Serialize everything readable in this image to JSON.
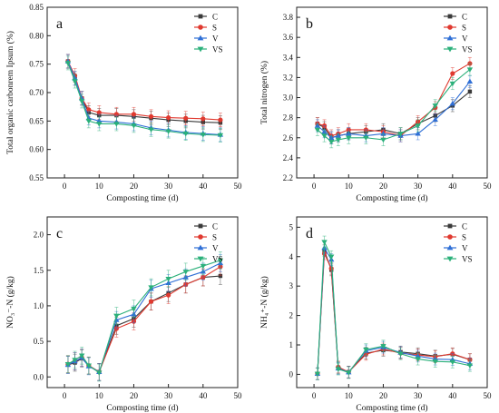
{
  "colors": {
    "C": "#3a3a3a",
    "S": "#e0392f",
    "V": "#2f6fd6",
    "VS": "#2bb07a"
  },
  "chart_data": [
    {
      "type": "line",
      "panel_label": "a",
      "xlabel": "Composting time (d)",
      "ylabel": "Total organic carbonrem Ipsum (%)",
      "xlim": [
        -5,
        50
      ],
      "ylim": [
        0.55,
        0.85
      ],
      "xticks": [
        0,
        10,
        20,
        30,
        40,
        50
      ],
      "yticks": [
        0.55,
        0.6,
        0.65,
        0.7,
        0.75,
        0.8,
        0.85
      ],
      "ytick_labels": [
        "0.55",
        "0.60",
        "0.65",
        "0.70",
        "0.75",
        "0.80",
        "0.85"
      ],
      "x": [
        1,
        3,
        5,
        7,
        10,
        15,
        20,
        25,
        30,
        35,
        40,
        45
      ],
      "legend": "top-right",
      "error_bar": 0.012,
      "series": [
        {
          "name": "C",
          "values": [
            0.755,
            0.725,
            0.69,
            0.665,
            0.66,
            0.66,
            0.658,
            0.655,
            0.652,
            0.65,
            0.648,
            0.647
          ]
        },
        {
          "name": "S",
          "values": [
            0.755,
            0.73,
            0.69,
            0.67,
            0.665,
            0.662,
            0.662,
            0.658,
            0.656,
            0.655,
            0.654,
            0.652
          ]
        },
        {
          "name": "V",
          "values": [
            0.755,
            0.725,
            0.69,
            0.655,
            0.65,
            0.648,
            0.645,
            0.638,
            0.634,
            0.63,
            0.628,
            0.626
          ]
        },
        {
          "name": "VS",
          "values": [
            0.752,
            0.72,
            0.685,
            0.65,
            0.645,
            0.645,
            0.642,
            0.635,
            0.632,
            0.628,
            0.626,
            0.625
          ]
        }
      ]
    },
    {
      "type": "line",
      "panel_label": "b",
      "xlabel": "Composting time (d)",
      "ylabel": "Total nitrogen (%)",
      "xlim": [
        -5,
        50
      ],
      "ylim": [
        2.2,
        3.9
      ],
      "xticks": [
        0,
        10,
        20,
        30,
        40,
        50
      ],
      "yticks": [
        2.2,
        2.4,
        2.6,
        2.8,
        3.0,
        3.2,
        3.4,
        3.6,
        3.8
      ],
      "ytick_labels": [
        "2.2",
        "2.4",
        "2.6",
        "2.8",
        "3.0",
        "3.2",
        "3.4",
        "3.6",
        "3.8"
      ],
      "x": [
        1,
        3,
        5,
        7,
        10,
        15,
        20,
        25,
        30,
        35,
        40,
        45
      ],
      "legend": "top-right",
      "error_bar": 0.06,
      "series": [
        {
          "name": "C",
          "values": [
            2.74,
            2.7,
            2.6,
            2.62,
            2.64,
            2.66,
            2.68,
            2.64,
            2.74,
            2.82,
            2.92,
            3.06
          ]
        },
        {
          "name": "S",
          "values": [
            2.74,
            2.72,
            2.62,
            2.64,
            2.68,
            2.68,
            2.66,
            2.62,
            2.76,
            2.9,
            3.24,
            3.34
          ]
        },
        {
          "name": "V",
          "values": [
            2.72,
            2.66,
            2.6,
            2.62,
            2.64,
            2.62,
            2.64,
            2.62,
            2.64,
            2.78,
            2.94,
            3.16
          ]
        },
        {
          "name": "VS",
          "values": [
            2.68,
            2.62,
            2.56,
            2.58,
            2.6,
            2.6,
            2.58,
            2.64,
            2.72,
            2.92,
            3.14,
            3.28
          ]
        }
      ]
    },
    {
      "type": "line",
      "panel_label": "c",
      "xlabel": "Composting time (d)",
      "ylabel": "NO₃⁻-N (g/kg)",
      "xlim": [
        -5,
        50
      ],
      "ylim": [
        -0.15,
        2.25
      ],
      "xticks": [
        0,
        10,
        20,
        30,
        40,
        50
      ],
      "yticks": [
        0,
        0.5,
        1.0,
        1.5,
        2.0
      ],
      "ytick_labels": [
        "0.0",
        "0.5",
        "1.0",
        "1.5",
        "2.0"
      ],
      "x": [
        1,
        3,
        5,
        7,
        10,
        15,
        20,
        25,
        30,
        35,
        40,
        45
      ],
      "legend": "top-right",
      "error_bar": 0.12,
      "series": [
        {
          "name": "C",
          "values": [
            0.17,
            0.2,
            0.26,
            0.16,
            0.07,
            0.72,
            0.82,
            1.06,
            1.18,
            1.3,
            1.4,
            1.42
          ]
        },
        {
          "name": "S",
          "values": [
            0.18,
            0.22,
            0.27,
            0.16,
            0.07,
            0.68,
            0.78,
            1.06,
            1.15,
            1.3,
            1.4,
            1.55
          ]
        },
        {
          "name": "V",
          "values": [
            0.17,
            0.22,
            0.27,
            0.15,
            0.07,
            0.8,
            0.88,
            1.24,
            1.32,
            1.4,
            1.48,
            1.6
          ]
        },
        {
          "name": "VS",
          "values": [
            0.18,
            0.24,
            0.3,
            0.16,
            0.06,
            0.86,
            0.96,
            1.26,
            1.38,
            1.48,
            1.56,
            1.64
          ]
        }
      ]
    },
    {
      "type": "line",
      "panel_label": "d",
      "xlabel": "Composting time (d)",
      "ylabel": "NH₄⁺-N (g/kg)",
      "xlim": [
        -5,
        50
      ],
      "ylim": [
        -0.45,
        5.35
      ],
      "xticks": [
        0,
        10,
        20,
        30,
        40,
        50
      ],
      "yticks": [
        0,
        1,
        2,
        3,
        4,
        5
      ],
      "ytick_labels": [
        "0",
        "1",
        "2",
        "3",
        "4",
        "5"
      ],
      "x": [
        1,
        3,
        5,
        7,
        10,
        15,
        20,
        25,
        30,
        35,
        40,
        45
      ],
      "legend": "top-right",
      "error_bar": 0.2,
      "series": [
        {
          "name": "C",
          "values": [
            0.02,
            4.2,
            3.55,
            0.22,
            0.08,
            0.72,
            0.82,
            0.76,
            0.7,
            0.62,
            0.68,
            0.5
          ]
        },
        {
          "name": "S",
          "values": [
            0.02,
            4.1,
            3.6,
            0.25,
            0.08,
            0.68,
            0.86,
            0.72,
            0.66,
            0.6,
            0.7,
            0.5
          ]
        },
        {
          "name": "V",
          "values": [
            0.02,
            4.3,
            3.9,
            0.2,
            0.07,
            0.8,
            0.92,
            0.74,
            0.62,
            0.52,
            0.5,
            0.36
          ]
        },
        {
          "name": "VS",
          "values": [
            0.02,
            4.5,
            4.0,
            0.18,
            0.06,
            0.84,
            0.96,
            0.7,
            0.52,
            0.44,
            0.42,
            0.3
          ]
        }
      ]
    }
  ]
}
